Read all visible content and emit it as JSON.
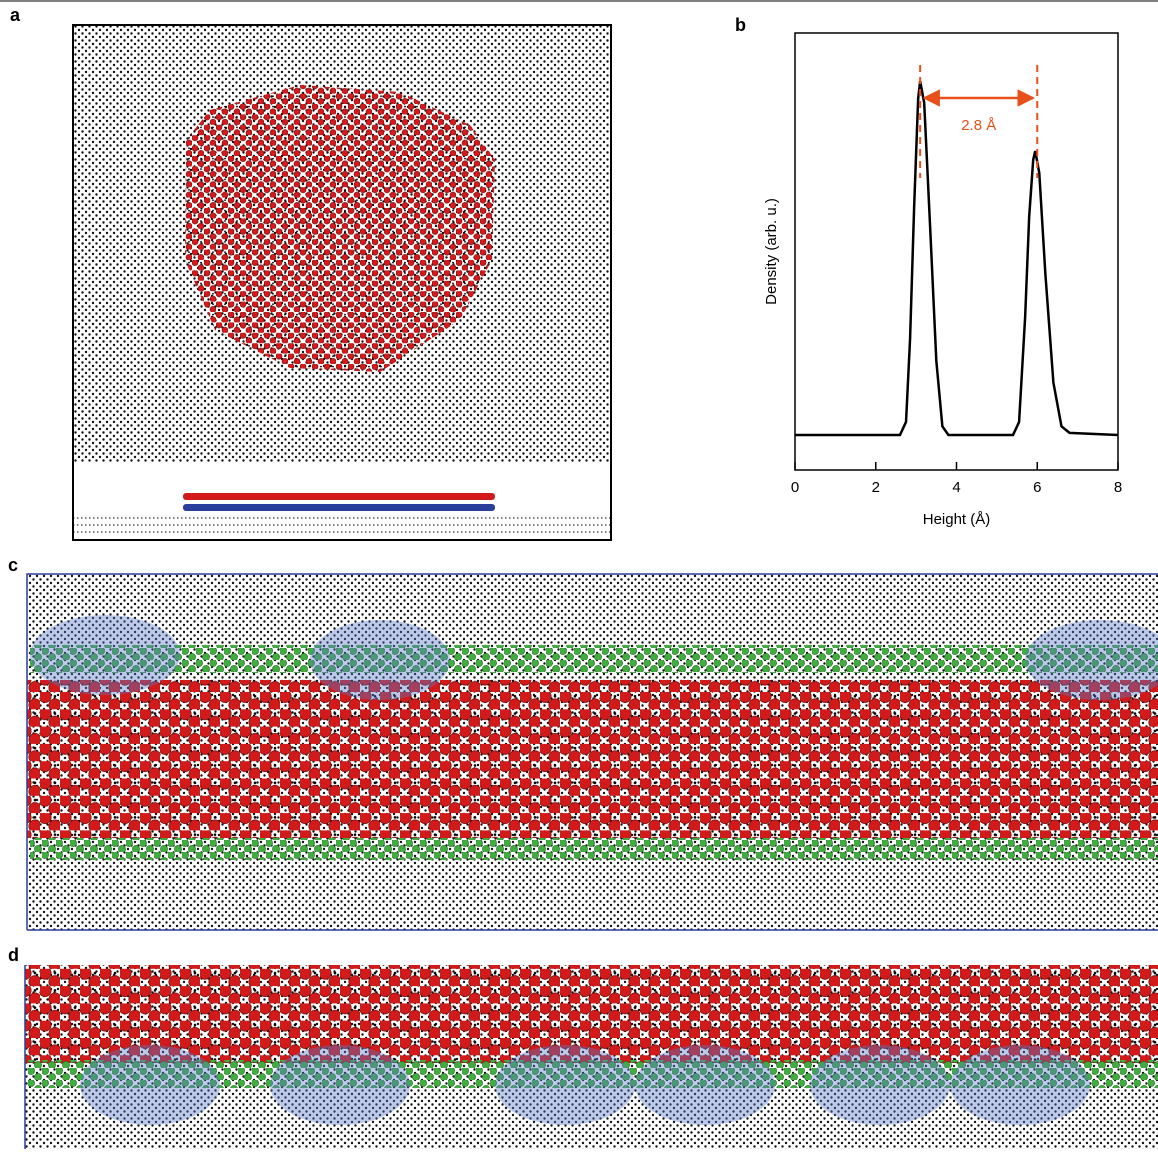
{
  "panels": [
    {
      "label": "a"
    },
    {
      "label": "b"
    },
    {
      "label": "c"
    },
    {
      "label": "d"
    }
  ],
  "chart_data": {
    "type": "line",
    "xlabel": "Height (Å)",
    "ylabel": "Density (arb. u.)",
    "x": [
      0,
      2.6,
      2.75,
      2.85,
      2.95,
      3.05,
      3.1,
      3.2,
      3.35,
      3.5,
      3.65,
      3.8,
      5.4,
      5.55,
      5.7,
      5.8,
      5.9,
      5.95,
      6.05,
      6.2,
      6.4,
      6.6,
      6.8,
      8
    ],
    "series": [
      {
        "color": "#000000",
        "values": [
          0.08,
          0.08,
          0.11,
          0.3,
          0.6,
          0.85,
          0.89,
          0.84,
          0.55,
          0.25,
          0.1,
          0.08,
          0.08,
          0.11,
          0.35,
          0.58,
          0.71,
          0.73,
          0.68,
          0.45,
          0.2,
          0.1,
          0.085,
          0.08
        ]
      }
    ],
    "xlim": [
      0,
      8
    ],
    "xticks": [
      0,
      2,
      4,
      6,
      8
    ],
    "ylim": [
      0,
      1
    ],
    "annotations": [
      {
        "text": "2.8 Å",
        "x": [
          3.1,
          6.0
        ],
        "color": "#e8501a"
      }
    ]
  }
}
